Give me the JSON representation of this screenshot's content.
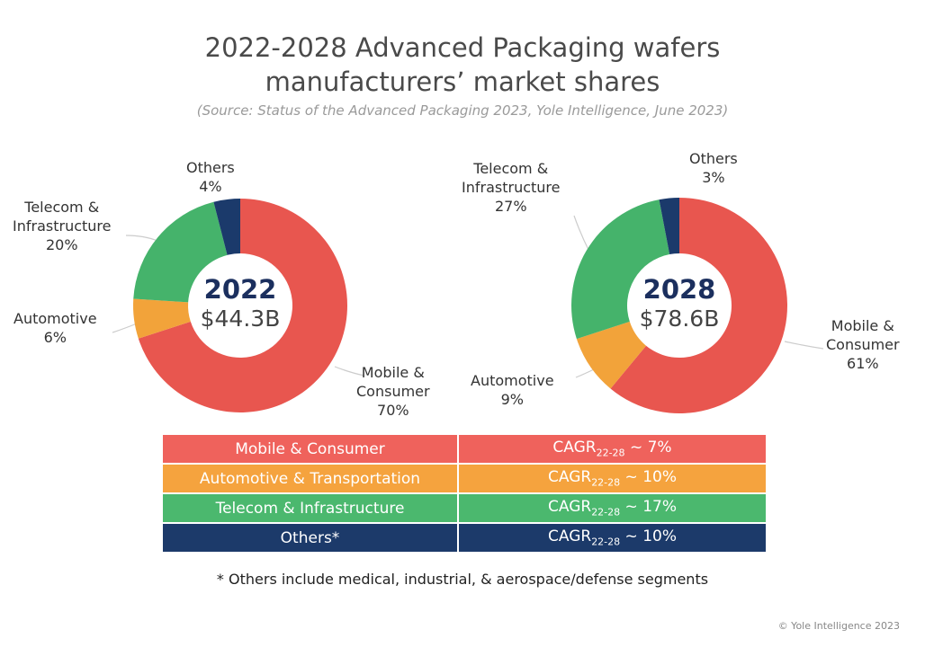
{
  "title_line1": "2022-2028 Advanced Packaging wafers",
  "title_line2": "manufacturers’ market shares",
  "subtitle": "(Source: Status of the Advanced Packaging 2023, Yole Intelligence, June 2023)",
  "chart_data": [
    {
      "type": "pie",
      "donut": true,
      "center_year": "2022",
      "center_value": "$44.3B",
      "categories": [
        "Mobile & Consumer",
        "Automotive",
        "Telecom & Infrastructure",
        "Others"
      ],
      "values": [
        70,
        6,
        20,
        4
      ],
      "labels": [
        "Mobile & Consumer 70%",
        "Automotive 6%",
        "Telecom & Infrastructure 20%",
        "Others 4%"
      ],
      "colors": [
        "#E8564F",
        "#F2A33A",
        "#45B36B",
        "#1B3A6B"
      ]
    },
    {
      "type": "pie",
      "donut": true,
      "center_year": "2028",
      "center_value": "$78.6B",
      "categories": [
        "Mobile & Consumer",
        "Automotive",
        "Telecom & Infrastructure",
        "Others"
      ],
      "values": [
        61,
        9,
        27,
        3
      ],
      "labels": [
        "Mobile & Consumer 61%",
        "Automotive 9%",
        "Telecom & Infrastructure 27%",
        "Others 3%"
      ],
      "colors": [
        "#E8564F",
        "#F2A33A",
        "#45B36B",
        "#1B3A6B"
      ]
    }
  ],
  "labels2022": {
    "others": [
      "Others",
      "4%"
    ],
    "telecom": [
      "Telecom &",
      "Infrastructure",
      "20%"
    ],
    "auto": [
      "Automotive",
      "6%"
    ],
    "mobile": [
      "Mobile &",
      "Consumer",
      "70%"
    ]
  },
  "labels2028": {
    "others": [
      "Others",
      "3%"
    ],
    "telecom": [
      "Telecom &",
      "Infrastructure",
      "27%"
    ],
    "auto": [
      "Automotive",
      "9%"
    ],
    "mobile": [
      "Mobile &",
      "Consumer",
      "61%"
    ]
  },
  "cagr_table": {
    "subscript": "22-28",
    "rows": [
      {
        "segment": "Mobile & Consumer",
        "prefix": "CAGR",
        "value": " ~ 7%",
        "color": "#EF625C"
      },
      {
        "segment": "Automotive & Transportation",
        "prefix": "CAGR",
        "value": " ~ 10%",
        "color": "#F5A33E"
      },
      {
        "segment": "Telecom & Infrastructure",
        "prefix": "CAGR",
        "value": " ~ 17%",
        "color": "#4BB86E"
      },
      {
        "segment": "Others*",
        "prefix": "CAGR",
        "value": " ~ 10%",
        "color": "#1C3A6A"
      }
    ]
  },
  "footnote": "* Others include medical, industrial, & aerospace/defense segments",
  "copyright": "© Yole Intelligence 2023"
}
